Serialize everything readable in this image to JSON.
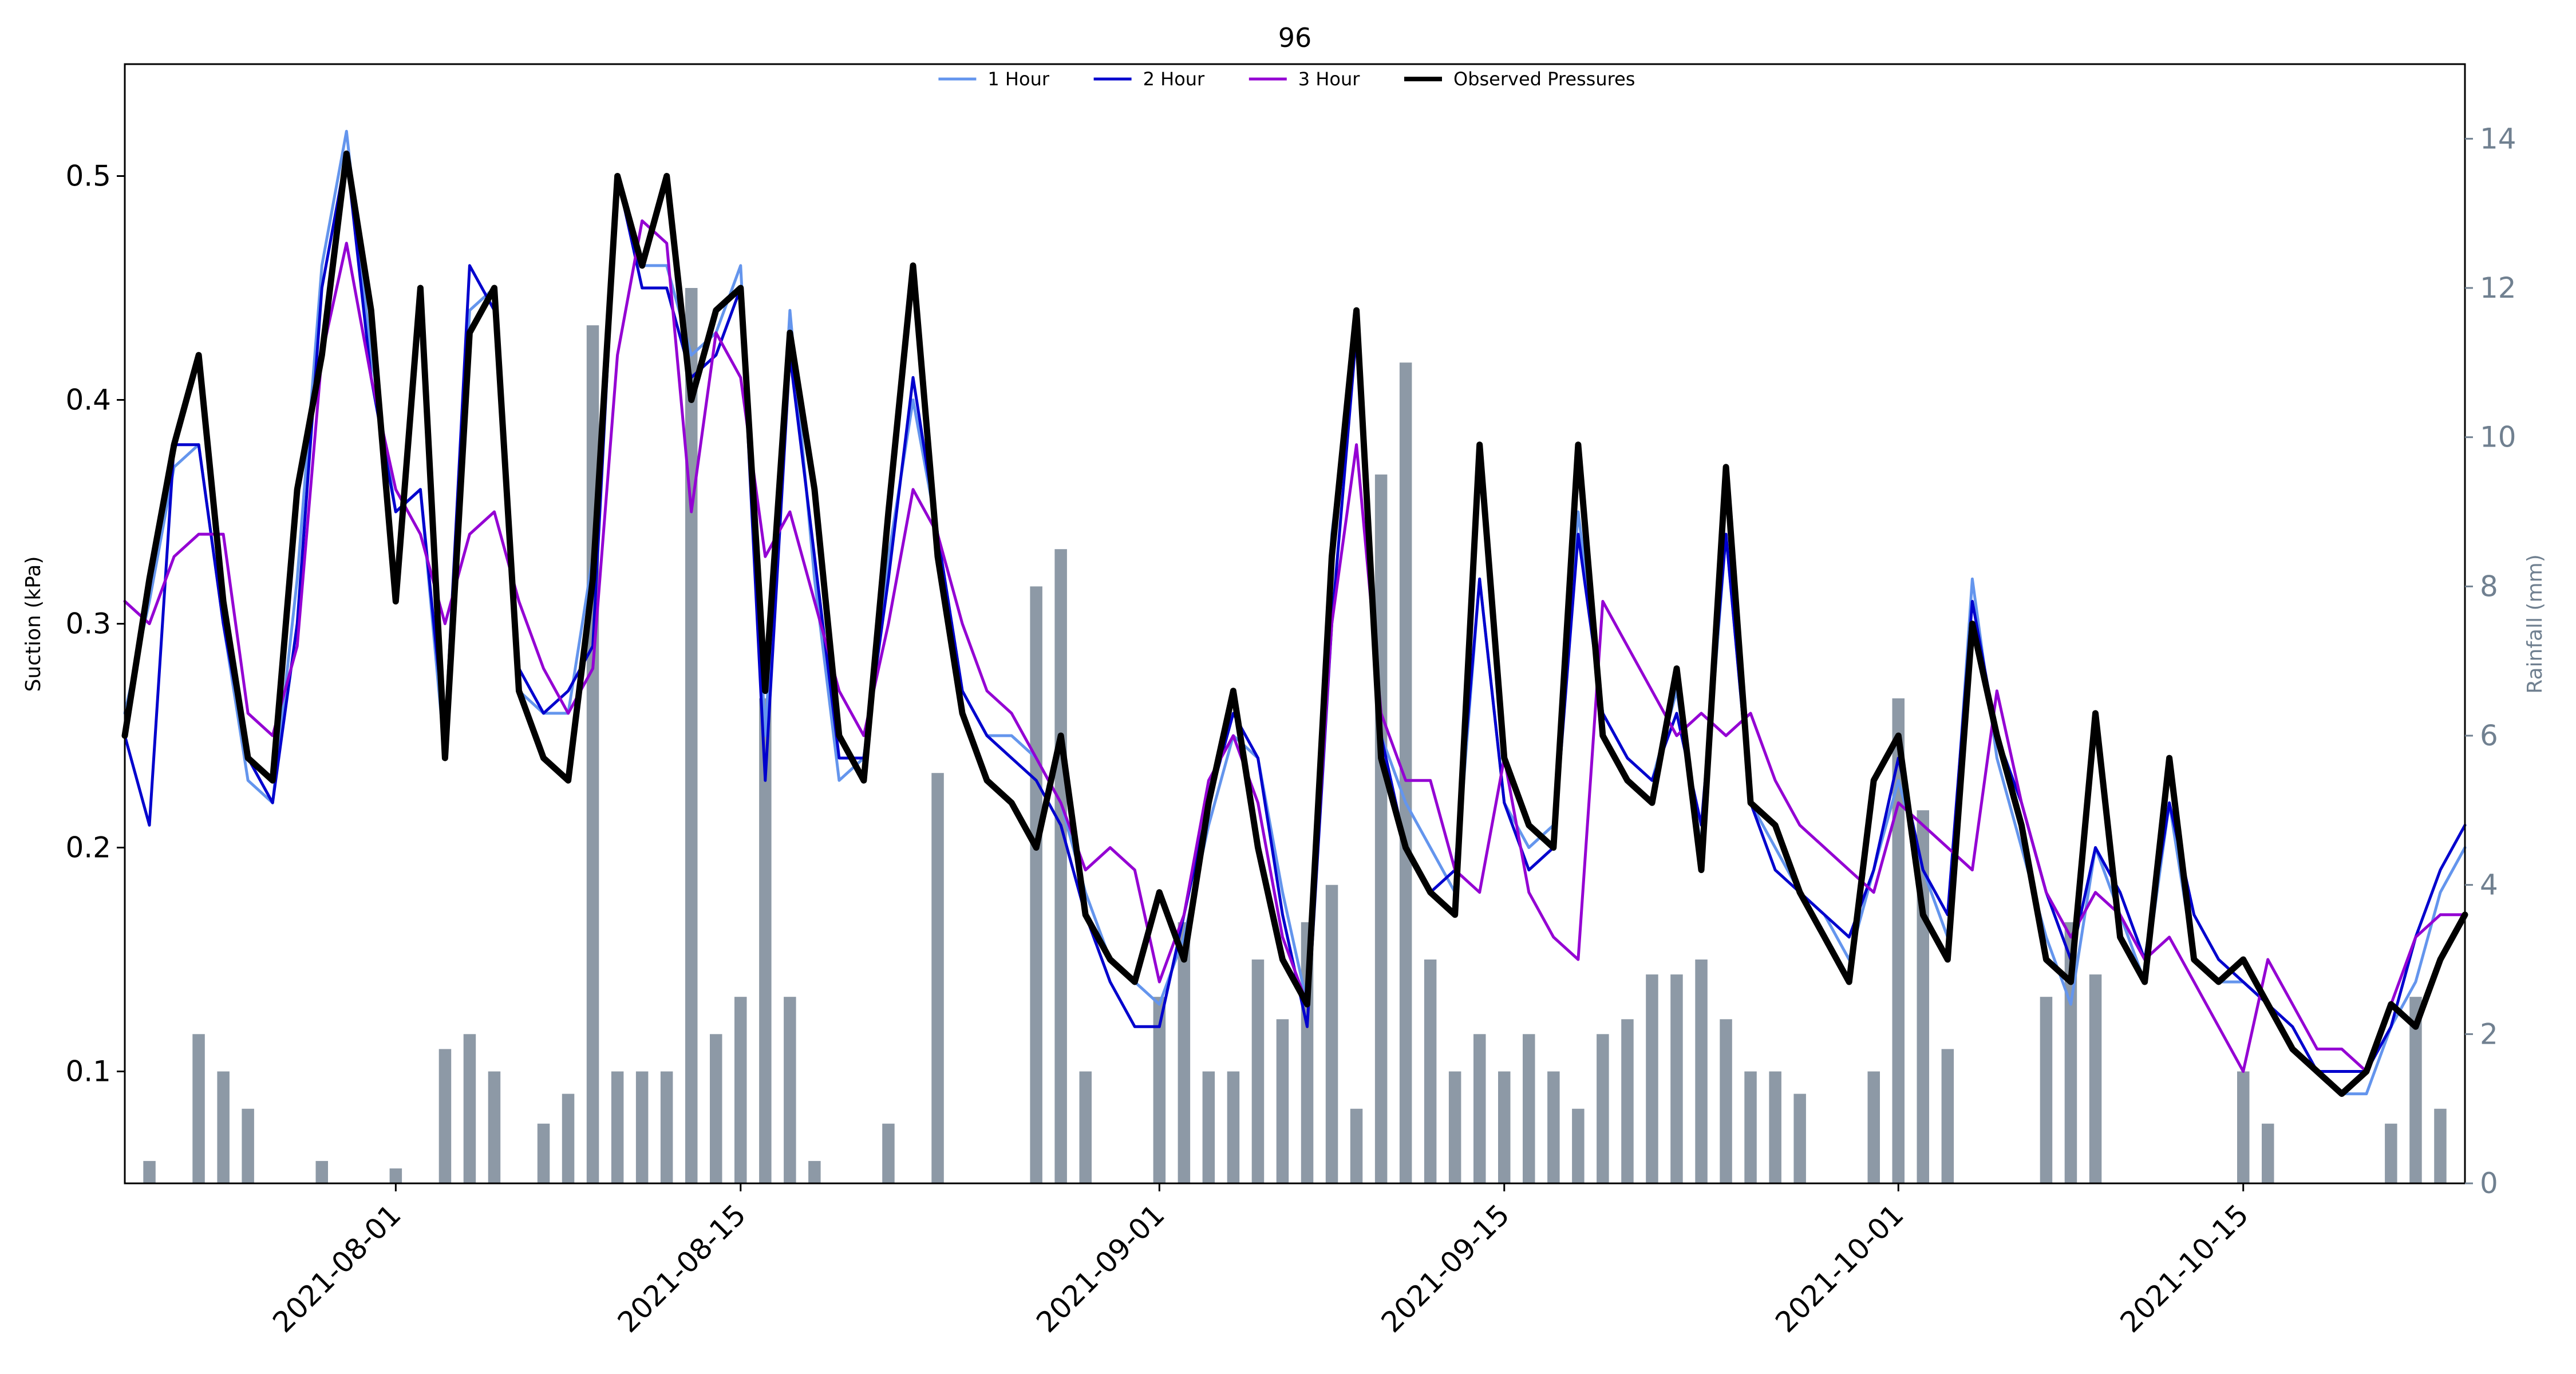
{
  "chart_data": {
    "type": "line",
    "title": "96",
    "ylabel": "Suction (kPa)",
    "y2label": "Rainfall (mm)",
    "xlabel": "",
    "xlim": [
      "2021-07-21",
      "2021-10-24"
    ],
    "ylim": [
      0.05,
      0.55
    ],
    "y2lim": [
      0,
      15
    ],
    "x_ticks": [
      "2021-08-01",
      "2021-08-15",
      "2021-09-01",
      "2021-09-15",
      "2021-10-01",
      "2021-10-15"
    ],
    "y_ticks": [
      0.1,
      0.2,
      0.3,
      0.4,
      0.5
    ],
    "y2_ticks": [
      0,
      2,
      4,
      6,
      8,
      10,
      12,
      14
    ],
    "y_tick_labels": [
      "0.1",
      "0.2",
      "0.3",
      "0.4",
      "0.5"
    ],
    "y2_tick_labels": [
      "0",
      "2",
      "4",
      "6",
      "8",
      "10",
      "12",
      "14"
    ],
    "legend_placement": "top-center",
    "grid": false,
    "series": [
      {
        "name": "1 Hour",
        "color": "#6495ed",
        "x": [
          "2021-07-21",
          "2021-07-22",
          "2021-07-23",
          "2021-07-24",
          "2021-07-25",
          "2021-07-26",
          "2021-07-27",
          "2021-07-28",
          "2021-07-29",
          "2021-07-30",
          "2021-07-31",
          "2021-08-01",
          "2021-08-02",
          "2021-08-03",
          "2021-08-04",
          "2021-08-05",
          "2021-08-06",
          "2021-08-07",
          "2021-08-08",
          "2021-08-09",
          "2021-08-10",
          "2021-08-11",
          "2021-08-12",
          "2021-08-13",
          "2021-08-14",
          "2021-08-15",
          "2021-08-16",
          "2021-08-17",
          "2021-08-18",
          "2021-08-19",
          "2021-08-20",
          "2021-08-21",
          "2021-08-22",
          "2021-08-23",
          "2021-08-24",
          "2021-08-25",
          "2021-08-26",
          "2021-08-27",
          "2021-08-28",
          "2021-08-29",
          "2021-08-30",
          "2021-08-31",
          "2021-09-01",
          "2021-09-02",
          "2021-09-03",
          "2021-09-04",
          "2021-09-05",
          "2021-09-06",
          "2021-09-07",
          "2021-09-08",
          "2021-09-09",
          "2021-09-10",
          "2021-09-11",
          "2021-09-12",
          "2021-09-13",
          "2021-09-14",
          "2021-09-15",
          "2021-09-16",
          "2021-09-17",
          "2021-09-18",
          "2021-09-19",
          "2021-09-20",
          "2021-09-21",
          "2021-09-22",
          "2021-09-23",
          "2021-09-24",
          "2021-09-25",
          "2021-09-26",
          "2021-09-27",
          "2021-09-28",
          "2021-09-29",
          "2021-09-30",
          "2021-10-01",
          "2021-10-02",
          "2021-10-03",
          "2021-10-04",
          "2021-10-05",
          "2021-10-06",
          "2021-10-07",
          "2021-10-08",
          "2021-10-09",
          "2021-10-10",
          "2021-10-11",
          "2021-10-12",
          "2021-10-13",
          "2021-10-14",
          "2021-10-15",
          "2021-10-16",
          "2021-10-17",
          "2021-10-18",
          "2021-10-19",
          "2021-10-20",
          "2021-10-21",
          "2021-10-22",
          "2021-10-23",
          "2021-10-24"
        ],
        "y": [
          0.26,
          0.31,
          0.37,
          0.38,
          0.3,
          0.23,
          0.22,
          0.32,
          0.46,
          0.52,
          0.42,
          0.35,
          0.36,
          0.24,
          0.44,
          0.45,
          0.27,
          0.26,
          0.26,
          0.33,
          0.5,
          0.46,
          0.46,
          0.42,
          0.43,
          0.46,
          0.25,
          0.44,
          0.32,
          0.23,
          0.24,
          0.33,
          0.4,
          0.34,
          0.27,
          0.25,
          0.25,
          0.24,
          0.22,
          0.18,
          0.15,
          0.14,
          0.13,
          0.16,
          0.21,
          0.25,
          0.24,
          0.18,
          0.13,
          0.34,
          0.43,
          0.25,
          0.22,
          0.2,
          0.18,
          0.32,
          0.22,
          0.2,
          0.21,
          0.35,
          0.26,
          0.24,
          0.23,
          0.27,
          0.2,
          0.34,
          0.22,
          0.2,
          0.18,
          0.17,
          0.15,
          0.19,
          0.23,
          0.19,
          0.16,
          0.32,
          0.24,
          0.2,
          0.16,
          0.13,
          0.2,
          0.17,
          0.14,
          0.22,
          0.15,
          0.14,
          0.14,
          0.13,
          0.11,
          0.1,
          0.09,
          0.09,
          0.12,
          0.14,
          0.18,
          0.2
        ]
      },
      {
        "name": "2 Hour",
        "color": "#0000cd",
        "x": [
          "2021-07-21",
          "2021-07-22",
          "2021-07-23",
          "2021-07-24",
          "2021-07-25",
          "2021-07-26",
          "2021-07-27",
          "2021-07-28",
          "2021-07-29",
          "2021-07-30",
          "2021-07-31",
          "2021-08-01",
          "2021-08-02",
          "2021-08-03",
          "2021-08-04",
          "2021-08-05",
          "2021-08-06",
          "2021-08-07",
          "2021-08-08",
          "2021-08-09",
          "2021-08-10",
          "2021-08-11",
          "2021-08-12",
          "2021-08-13",
          "2021-08-14",
          "2021-08-15",
          "2021-08-16",
          "2021-08-17",
          "2021-08-18",
          "2021-08-19",
          "2021-08-20",
          "2021-08-21",
          "2021-08-22",
          "2021-08-23",
          "2021-08-24",
          "2021-08-25",
          "2021-08-26",
          "2021-08-27",
          "2021-08-28",
          "2021-08-29",
          "2021-08-30",
          "2021-08-31",
          "2021-09-01",
          "2021-09-02",
          "2021-09-03",
          "2021-09-04",
          "2021-09-05",
          "2021-09-06",
          "2021-09-07",
          "2021-09-08",
          "2021-09-09",
          "2021-09-10",
          "2021-09-11",
          "2021-09-12",
          "2021-09-13",
          "2021-09-14",
          "2021-09-15",
          "2021-09-16",
          "2021-09-17",
          "2021-09-18",
          "2021-09-19",
          "2021-09-20",
          "2021-09-21",
          "2021-09-22",
          "2021-09-23",
          "2021-09-24",
          "2021-09-25",
          "2021-09-26",
          "2021-09-27",
          "2021-09-28",
          "2021-09-29",
          "2021-09-30",
          "2021-10-01",
          "2021-10-02",
          "2021-10-03",
          "2021-10-04",
          "2021-10-05",
          "2021-10-06",
          "2021-10-07",
          "2021-10-08",
          "2021-10-09",
          "2021-10-10",
          "2021-10-11",
          "2021-10-12",
          "2021-10-13",
          "2021-10-14",
          "2021-10-15",
          "2021-10-16",
          "2021-10-17",
          "2021-10-18",
          "2021-10-19",
          "2021-10-20",
          "2021-10-21",
          "2021-10-22",
          "2021-10-23",
          "2021-10-24"
        ],
        "y": [
          0.25,
          0.21,
          0.38,
          0.38,
          0.3,
          0.24,
          0.22,
          0.3,
          0.45,
          0.51,
          0.41,
          0.35,
          0.36,
          0.25,
          0.46,
          0.44,
          0.28,
          0.26,
          0.27,
          0.29,
          0.5,
          0.45,
          0.45,
          0.41,
          0.42,
          0.45,
          0.23,
          0.42,
          0.33,
          0.24,
          0.24,
          0.32,
          0.41,
          0.34,
          0.27,
          0.25,
          0.24,
          0.23,
          0.21,
          0.17,
          0.14,
          0.12,
          0.12,
          0.17,
          0.22,
          0.26,
          0.24,
          0.17,
          0.12,
          0.3,
          0.43,
          0.25,
          0.2,
          0.18,
          0.19,
          0.32,
          0.22,
          0.19,
          0.2,
          0.34,
          0.26,
          0.24,
          0.23,
          0.26,
          0.21,
          0.34,
          0.22,
          0.19,
          0.18,
          0.17,
          0.16,
          0.19,
          0.24,
          0.19,
          0.17,
          0.31,
          0.25,
          0.22,
          0.18,
          0.15,
          0.2,
          0.18,
          0.15,
          0.22,
          0.17,
          0.15,
          0.14,
          0.13,
          0.12,
          0.1,
          0.1,
          0.1,
          0.12,
          0.16,
          0.19,
          0.21
        ]
      },
      {
        "name": "3 Hour",
        "color": "#9400d3",
        "x": [
          "2021-07-21",
          "2021-07-22",
          "2021-07-23",
          "2021-07-24",
          "2021-07-25",
          "2021-07-26",
          "2021-07-27",
          "2021-07-28",
          "2021-07-29",
          "2021-07-30",
          "2021-07-31",
          "2021-08-01",
          "2021-08-02",
          "2021-08-03",
          "2021-08-04",
          "2021-08-05",
          "2021-08-06",
          "2021-08-07",
          "2021-08-08",
          "2021-08-09",
          "2021-08-10",
          "2021-08-11",
          "2021-08-12",
          "2021-08-13",
          "2021-08-14",
          "2021-08-15",
          "2021-08-16",
          "2021-08-17",
          "2021-08-18",
          "2021-08-19",
          "2021-08-20",
          "2021-08-21",
          "2021-08-22",
          "2021-08-23",
          "2021-08-24",
          "2021-08-25",
          "2021-08-26",
          "2021-08-27",
          "2021-08-28",
          "2021-08-29",
          "2021-08-30",
          "2021-08-31",
          "2021-09-01",
          "2021-09-02",
          "2021-09-03",
          "2021-09-04",
          "2021-09-05",
          "2021-09-06",
          "2021-09-07",
          "2021-09-08",
          "2021-09-09",
          "2021-09-10",
          "2021-09-11",
          "2021-09-12",
          "2021-09-13",
          "2021-09-14",
          "2021-09-15",
          "2021-09-16",
          "2021-09-17",
          "2021-09-18",
          "2021-09-19",
          "2021-09-20",
          "2021-09-21",
          "2021-09-22",
          "2021-09-23",
          "2021-09-24",
          "2021-09-25",
          "2021-09-26",
          "2021-09-27",
          "2021-09-28",
          "2021-09-29",
          "2021-09-30",
          "2021-10-01",
          "2021-10-02",
          "2021-10-03",
          "2021-10-04",
          "2021-10-05",
          "2021-10-06",
          "2021-10-07",
          "2021-10-08",
          "2021-10-09",
          "2021-10-10",
          "2021-10-11",
          "2021-10-12",
          "2021-10-13",
          "2021-10-14",
          "2021-10-15",
          "2021-10-16",
          "2021-10-17",
          "2021-10-18",
          "2021-10-19",
          "2021-10-20",
          "2021-10-21",
          "2021-10-22",
          "2021-10-23",
          "2021-10-24"
        ],
        "y": [
          0.31,
          0.3,
          0.33,
          0.34,
          0.34,
          0.26,
          0.25,
          0.29,
          0.42,
          0.47,
          0.41,
          0.36,
          0.34,
          0.3,
          0.34,
          0.35,
          0.31,
          0.28,
          0.26,
          0.28,
          0.42,
          0.48,
          0.47,
          0.35,
          0.43,
          0.41,
          0.33,
          0.35,
          0.31,
          0.27,
          0.25,
          0.3,
          0.36,
          0.34,
          0.3,
          0.27,
          0.26,
          0.24,
          0.22,
          0.19,
          0.2,
          0.19,
          0.14,
          0.17,
          0.23,
          0.25,
          0.22,
          0.16,
          0.13,
          0.3,
          0.38,
          0.26,
          0.23,
          0.23,
          0.19,
          0.18,
          0.24,
          0.18,
          0.16,
          0.15,
          0.31,
          0.29,
          0.27,
          0.25,
          0.26,
          0.25,
          0.26,
          0.23,
          0.21,
          0.2,
          0.19,
          0.18,
          0.22,
          0.21,
          0.2,
          0.19,
          0.27,
          0.22,
          0.18,
          0.16,
          0.18,
          0.17,
          0.15,
          0.16,
          0.14,
          0.12,
          0.1,
          0.15,
          0.13,
          0.11,
          0.11,
          0.1,
          0.13,
          0.16,
          0.17,
          0.17
        ]
      },
      {
        "name": "Observed Pressures",
        "color": "#000000",
        "x": [
          "2021-07-21",
          "2021-07-22",
          "2021-07-23",
          "2021-07-24",
          "2021-07-25",
          "2021-07-26",
          "2021-07-27",
          "2021-07-28",
          "2021-07-29",
          "2021-07-30",
          "2021-07-31",
          "2021-08-01",
          "2021-08-02",
          "2021-08-03",
          "2021-08-04",
          "2021-08-05",
          "2021-08-06",
          "2021-08-07",
          "2021-08-08",
          "2021-08-09",
          "2021-08-10",
          "2021-08-11",
          "2021-08-12",
          "2021-08-13",
          "2021-08-14",
          "2021-08-15",
          "2021-08-16",
          "2021-08-17",
          "2021-08-18",
          "2021-08-19",
          "2021-08-20",
          "2021-08-21",
          "2021-08-22",
          "2021-08-23",
          "2021-08-24",
          "2021-08-25",
          "2021-08-26",
          "2021-08-27",
          "2021-08-28",
          "2021-08-29",
          "2021-08-30",
          "2021-08-31",
          "2021-09-01",
          "2021-09-02",
          "2021-09-03",
          "2021-09-04",
          "2021-09-05",
          "2021-09-06",
          "2021-09-07",
          "2021-09-08",
          "2021-09-09",
          "2021-09-10",
          "2021-09-11",
          "2021-09-12",
          "2021-09-13",
          "2021-09-14",
          "2021-09-15",
          "2021-09-16",
          "2021-09-17",
          "2021-09-18",
          "2021-09-19",
          "2021-09-20",
          "2021-09-21",
          "2021-09-22",
          "2021-09-23",
          "2021-09-24",
          "2021-09-25",
          "2021-09-26",
          "2021-09-27",
          "2021-09-28",
          "2021-09-29",
          "2021-09-30",
          "2021-10-01",
          "2021-10-02",
          "2021-10-03",
          "2021-10-04",
          "2021-10-05",
          "2021-10-06",
          "2021-10-07",
          "2021-10-08",
          "2021-10-09",
          "2021-10-10",
          "2021-10-11",
          "2021-10-12",
          "2021-10-13",
          "2021-10-14",
          "2021-10-15",
          "2021-10-16",
          "2021-10-17",
          "2021-10-18",
          "2021-10-19",
          "2021-10-20",
          "2021-10-21",
          "2021-10-22",
          "2021-10-23",
          "2021-10-24"
        ],
        "y": [
          0.25,
          0.32,
          0.38,
          0.42,
          0.31,
          0.24,
          0.23,
          0.36,
          0.42,
          0.51,
          0.44,
          0.31,
          0.45,
          0.24,
          0.43,
          0.45,
          0.27,
          0.24,
          0.23,
          0.32,
          0.5,
          0.46,
          0.5,
          0.4,
          0.44,
          0.45,
          0.27,
          0.43,
          0.36,
          0.25,
          0.23,
          0.35,
          0.46,
          0.33,
          0.26,
          0.23,
          0.22,
          0.2,
          0.25,
          0.17,
          0.15,
          0.14,
          0.18,
          0.15,
          0.22,
          0.27,
          0.2,
          0.15,
          0.13,
          0.33,
          0.44,
          0.24,
          0.2,
          0.18,
          0.17,
          0.38,
          0.24,
          0.21,
          0.2,
          0.38,
          0.25,
          0.23,
          0.22,
          0.28,
          0.19,
          0.37,
          0.22,
          0.21,
          0.18,
          0.16,
          0.14,
          0.23,
          0.25,
          0.17,
          0.15,
          0.3,
          0.25,
          0.21,
          0.15,
          0.14,
          0.26,
          0.16,
          0.14,
          0.24,
          0.15,
          0.14,
          0.15,
          0.13,
          0.11,
          0.1,
          0.09,
          0.1,
          0.13,
          0.12,
          0.15,
          0.17
        ]
      }
    ],
    "rainfall": {
      "name": "Rainfall (mm)",
      "color": "#708090",
      "x": [
        "2021-07-22",
        "2021-07-24",
        "2021-07-25",
        "2021-07-26",
        "2021-07-29",
        "2021-08-01",
        "2021-08-03",
        "2021-08-04",
        "2021-08-05",
        "2021-08-07",
        "2021-08-08",
        "2021-08-09",
        "2021-08-10",
        "2021-08-11",
        "2021-08-12",
        "2021-08-13",
        "2021-08-14",
        "2021-08-15",
        "2021-08-16",
        "2021-08-17",
        "2021-08-18",
        "2021-08-21",
        "2021-08-23",
        "2021-08-27",
        "2021-08-28",
        "2021-08-29",
        "2021-09-01",
        "2021-09-02",
        "2021-09-03",
        "2021-09-04",
        "2021-09-05",
        "2021-09-06",
        "2021-09-07",
        "2021-09-08",
        "2021-09-09",
        "2021-09-10",
        "2021-09-11",
        "2021-09-12",
        "2021-09-13",
        "2021-09-14",
        "2021-09-15",
        "2021-09-16",
        "2021-09-17",
        "2021-09-18",
        "2021-09-19",
        "2021-09-20",
        "2021-09-21",
        "2021-09-22",
        "2021-09-23",
        "2021-09-24",
        "2021-09-25",
        "2021-09-26",
        "2021-09-27",
        "2021-09-30",
        "2021-10-01",
        "2021-10-02",
        "2021-10-03",
        "2021-10-07",
        "2021-10-08",
        "2021-10-09",
        "2021-10-15",
        "2021-10-16",
        "2021-10-21",
        "2021-10-22",
        "2021-10-23"
      ],
      "values": [
        0.3,
        2.0,
        1.5,
        1.0,
        0.3,
        0.2,
        1.8,
        2.0,
        1.5,
        0.8,
        1.2,
        11.5,
        1.5,
        1.5,
        1.5,
        12.0,
        2.0,
        2.5,
        6.5,
        2.5,
        0.3,
        0.8,
        5.5,
        8.0,
        8.5,
        1.5,
        2.5,
        3.5,
        1.5,
        1.5,
        3.0,
        2.2,
        3.5,
        4.0,
        1.0,
        9.5,
        11.0,
        3.0,
        1.5,
        2.0,
        1.5,
        2.0,
        1.5,
        1.0,
        2.0,
        2.2,
        2.8,
        2.8,
        3.0,
        2.2,
        1.5,
        1.5,
        1.2,
        1.5,
        6.5,
        5.0,
        1.8,
        2.5,
        3.5,
        2.8,
        1.5,
        0.8,
        0.8,
        2.5,
        1.0
      ]
    }
  }
}
